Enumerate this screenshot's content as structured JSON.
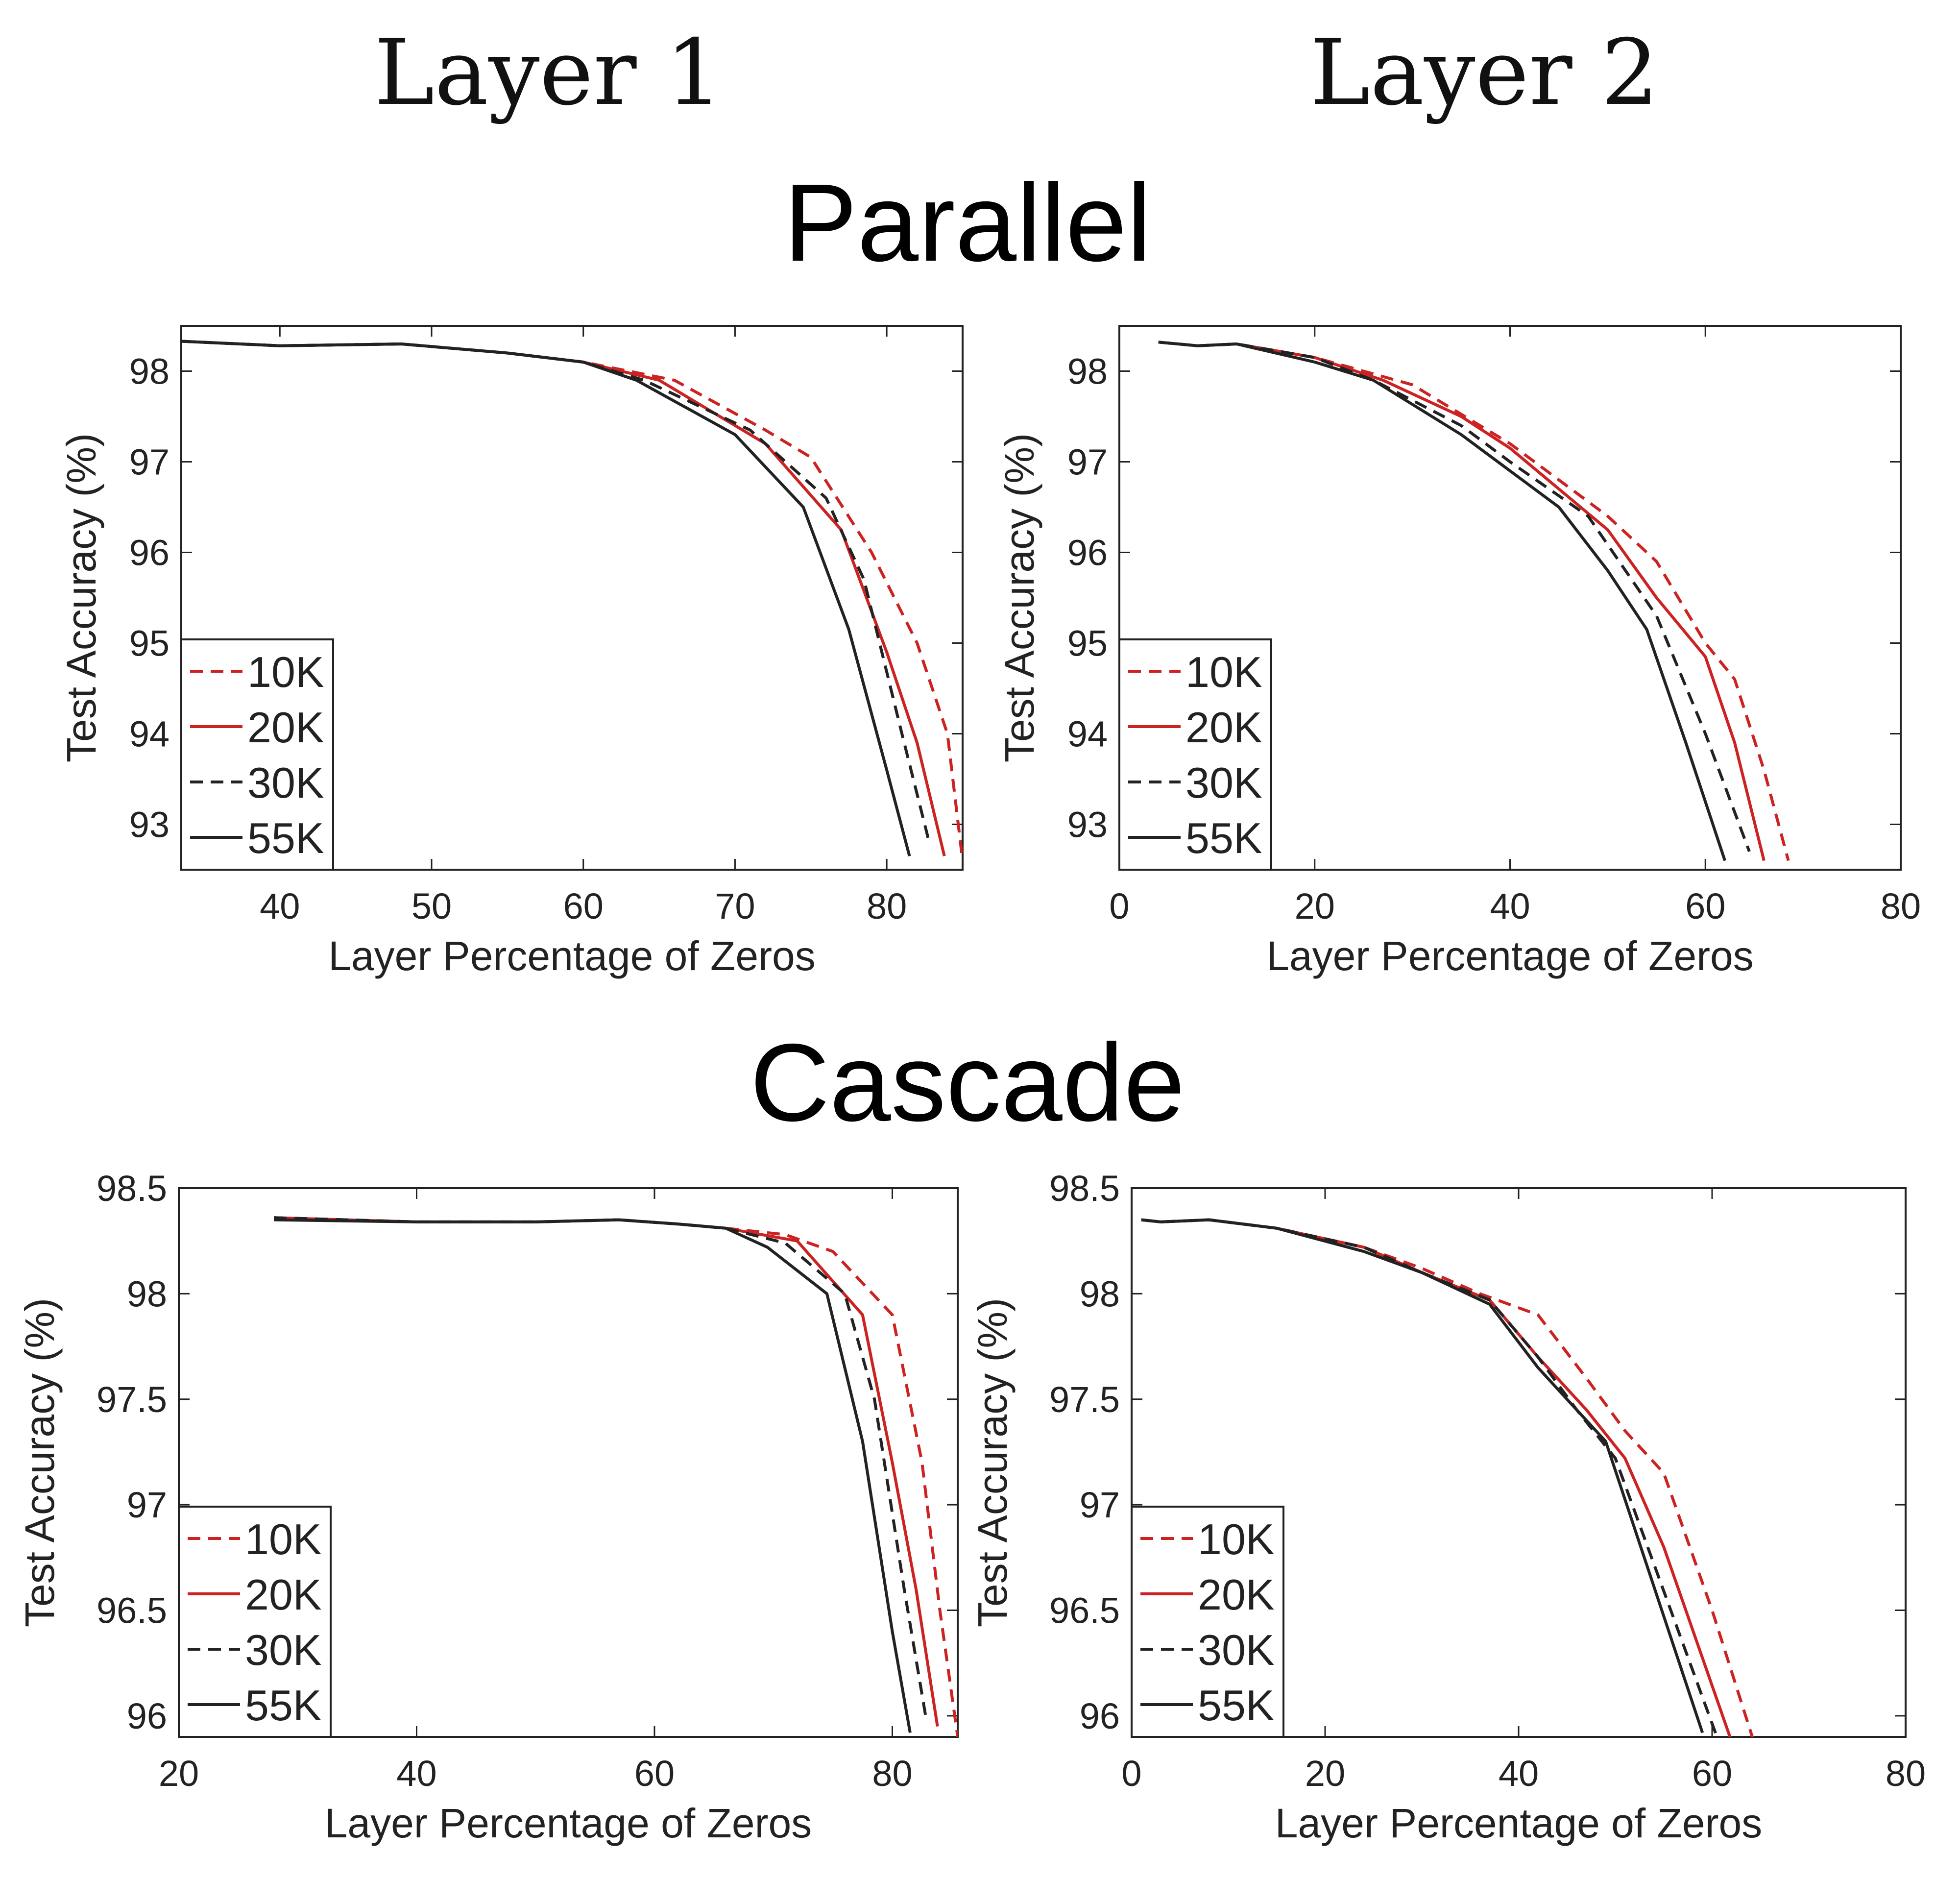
{
  "headers": {
    "col1": "Layer 1",
    "col2": "Layer 2",
    "row1": "Parallel",
    "row2": "Cascade"
  },
  "colors": {
    "red": "#cc2222",
    "black": "#222222"
  },
  "chart_data": [
    {
      "type": "line",
      "xlabel": "Layer Percentage of Zeros",
      "ylabel": "Test Accuracy (%)",
      "xlim": [
        33.5,
        85
      ],
      "ylim": [
        92.5,
        98.5
      ],
      "xticks": [
        40,
        50,
        60,
        70,
        80
      ],
      "yticks": [
        93,
        94,
        95,
        96,
        97,
        98
      ],
      "ytick_labels": [
        "93",
        "94",
        "95",
        "96",
        "97",
        "98"
      ],
      "legend": "bottom-left",
      "series": [
        {
          "name": "10K",
          "style": "dashed",
          "color": "red",
          "x": [
            33.5,
            40,
            48,
            55,
            60,
            66,
            72,
            75,
            79,
            82,
            84,
            85
          ],
          "y": [
            98.33,
            98.28,
            98.3,
            98.2,
            98.1,
            97.9,
            97.35,
            97.05,
            96.0,
            95.0,
            94.0,
            92.6
          ]
        },
        {
          "name": "20K",
          "style": "solid",
          "color": "red",
          "x": [
            33.5,
            40,
            48,
            55,
            60,
            65,
            72,
            77,
            80,
            82,
            83.8
          ],
          "y": [
            98.33,
            98.28,
            98.3,
            98.2,
            98.1,
            97.9,
            97.2,
            96.25,
            94.9,
            93.9,
            92.65
          ]
        },
        {
          "name": "30K",
          "style": "dashed",
          "color": "black",
          "x": [
            33.5,
            40,
            48,
            55,
            60,
            64,
            71,
            76,
            78.5,
            81,
            82.8
          ],
          "y": [
            98.33,
            98.28,
            98.3,
            98.2,
            98.1,
            97.9,
            97.35,
            96.6,
            95.7,
            94.0,
            92.8
          ]
        },
        {
          "name": "55K",
          "style": "solid",
          "color": "black",
          "x": [
            33.5,
            40,
            48,
            55,
            60,
            63.5,
            70,
            74.5,
            77.5,
            80,
            81.5
          ],
          "y": [
            98.33,
            98.28,
            98.3,
            98.2,
            98.1,
            97.9,
            97.3,
            96.5,
            95.15,
            93.6,
            92.65
          ]
        }
      ]
    },
    {
      "type": "line",
      "xlabel": "Layer Percentage of Zeros",
      "ylabel": "Test Accuracy (%)",
      "xlim": [
        0,
        80
      ],
      "ylim": [
        92.5,
        98.5
      ],
      "xticks": [
        0,
        20,
        40,
        60,
        80
      ],
      "yticks": [
        93,
        94,
        95,
        96,
        97,
        98
      ],
      "ytick_labels": [
        "93",
        "94",
        "95",
        "96",
        "97",
        "98"
      ],
      "legend": "bottom-left",
      "series": [
        {
          "name": "10K",
          "style": "dashed",
          "color": "red",
          "x": [
            4,
            8,
            12,
            20,
            30,
            40,
            50,
            55,
            60,
            63,
            66,
            68.5
          ],
          "y": [
            98.32,
            98.28,
            98.3,
            98.15,
            97.85,
            97.2,
            96.4,
            95.9,
            95.0,
            94.6,
            93.6,
            92.6
          ]
        },
        {
          "name": "20K",
          "style": "solid",
          "color": "red",
          "x": [
            4,
            8,
            12,
            20,
            27,
            35,
            40,
            50,
            55,
            60,
            63,
            66
          ],
          "y": [
            98.32,
            98.28,
            98.3,
            98.15,
            97.9,
            97.5,
            97.15,
            96.25,
            95.5,
            94.85,
            93.9,
            92.6
          ]
        },
        {
          "name": "30K",
          "style": "dashed",
          "color": "black",
          "x": [
            4,
            8,
            12,
            20,
            26,
            35,
            40,
            48,
            55,
            60,
            64.5
          ],
          "y": [
            98.32,
            98.28,
            98.3,
            98.15,
            97.9,
            97.4,
            97.0,
            96.4,
            95.3,
            94.0,
            92.7
          ]
        },
        {
          "name": "55K",
          "style": "solid",
          "color": "black",
          "x": [
            4,
            8,
            12,
            20,
            26,
            35,
            40,
            45,
            50,
            54,
            58,
            62
          ],
          "y": [
            98.32,
            98.28,
            98.3,
            98.1,
            97.9,
            97.3,
            96.9,
            96.5,
            95.8,
            95.15,
            93.9,
            92.6
          ]
        }
      ]
    },
    {
      "type": "line",
      "xlabel": "Layer Percentage of Zeros",
      "ylabel": "Test Accuracy (%)",
      "xlim": [
        20,
        85.5
      ],
      "ylim": [
        95.9,
        98.5
      ],
      "xticks": [
        20,
        40,
        60,
        80
      ],
      "yticks": [
        96,
        96.5,
        97,
        97.5,
        98,
        98.5
      ],
      "ytick_labels": [
        "96",
        "96.5",
        "97",
        "97.5",
        "98",
        "98.5"
      ],
      "legend": "bottom-left",
      "series": [
        {
          "name": "10K",
          "style": "dashed",
          "color": "red",
          "x": [
            28,
            40,
            50,
            57,
            62,
            66,
            71,
            75,
            80,
            82.5,
            84,
            85.5
          ],
          "y": [
            98.36,
            98.34,
            98.34,
            98.35,
            98.33,
            98.31,
            98.28,
            98.2,
            97.9,
            97.2,
            96.5,
            95.9
          ]
        },
        {
          "name": "20K",
          "style": "solid",
          "color": "red",
          "x": [
            28,
            40,
            50,
            57,
            62,
            66,
            72,
            77.5,
            80,
            82,
            83.8
          ],
          "y": [
            98.36,
            98.34,
            98.34,
            98.35,
            98.33,
            98.31,
            98.25,
            97.9,
            97.2,
            96.6,
            95.95
          ]
        },
        {
          "name": "30K",
          "style": "dashed",
          "color": "black",
          "x": [
            28,
            40,
            50,
            57,
            62,
            66,
            71,
            76,
            78.5,
            81,
            82.8
          ],
          "y": [
            98.36,
            98.34,
            98.34,
            98.35,
            98.33,
            98.31,
            98.24,
            98.0,
            97.5,
            96.6,
            96.0
          ]
        },
        {
          "name": "55K",
          "style": "solid",
          "color": "black",
          "x": [
            28,
            40,
            50,
            57,
            62,
            66,
            69.5,
            74.5,
            77.5,
            80,
            81.5
          ],
          "y": [
            98.35,
            98.34,
            98.34,
            98.35,
            98.33,
            98.31,
            98.22,
            98.0,
            97.3,
            96.4,
            95.92
          ]
        }
      ]
    },
    {
      "type": "line",
      "xlabel": "Layer Percentage of Zeros",
      "ylabel": "Test Accuracy (%)",
      "xlim": [
        0,
        80
      ],
      "ylim": [
        95.9,
        98.5
      ],
      "xticks": [
        0,
        20,
        40,
        60,
        80
      ],
      "yticks": [
        96,
        96.5,
        97,
        97.5,
        98,
        98.5
      ],
      "ytick_labels": [
        "96",
        "96.5",
        "97",
        "97.5",
        "98",
        "98.5"
      ],
      "legend": "bottom-left",
      "series": [
        {
          "name": "10K",
          "style": "dashed",
          "color": "red",
          "x": [
            1,
            3,
            8,
            15,
            24,
            30,
            36,
            42,
            47,
            51,
            55,
            60,
            64.5
          ],
          "y": [
            98.35,
            98.34,
            98.35,
            98.31,
            98.22,
            98.12,
            98.0,
            97.9,
            97.6,
            97.35,
            97.15,
            96.5,
            95.85
          ]
        },
        {
          "name": "20K",
          "style": "solid",
          "color": "red",
          "x": [
            1,
            3,
            8,
            15,
            24,
            30,
            37,
            42,
            47,
            51,
            55,
            62
          ],
          "y": [
            98.35,
            98.34,
            98.35,
            98.31,
            98.22,
            98.1,
            97.97,
            97.7,
            97.45,
            97.22,
            96.8,
            95.88
          ]
        },
        {
          "name": "30K",
          "style": "dashed",
          "color": "black",
          "x": [
            1,
            3,
            8,
            15,
            24,
            30,
            37,
            42,
            46,
            50,
            60.5
          ],
          "y": [
            98.35,
            98.34,
            98.35,
            98.31,
            98.22,
            98.1,
            97.97,
            97.7,
            97.45,
            97.22,
            95.9
          ]
        },
        {
          "name": "55K",
          "style": "solid",
          "color": "black",
          "x": [
            1,
            3,
            8,
            15,
            24,
            30,
            37,
            42,
            46,
            49,
            59
          ],
          "y": [
            98.35,
            98.34,
            98.35,
            98.31,
            98.2,
            98.1,
            97.95,
            97.65,
            97.45,
            97.3,
            95.92
          ]
        }
      ]
    }
  ]
}
